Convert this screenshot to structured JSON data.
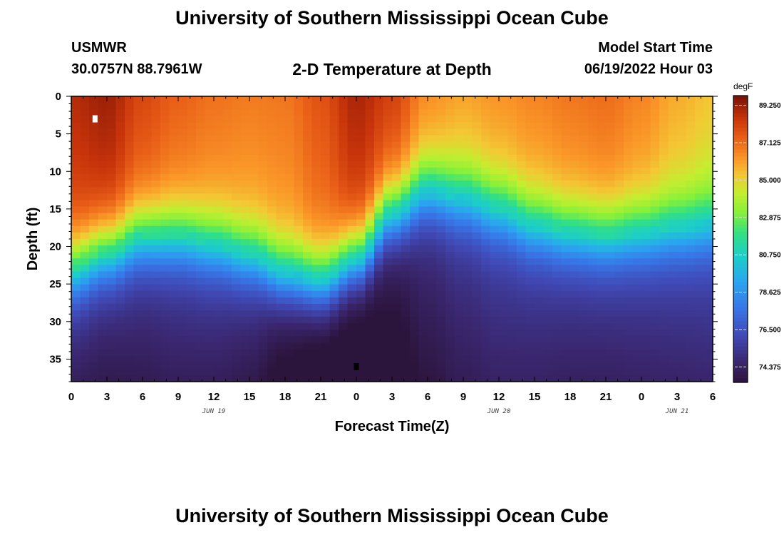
{
  "header": {
    "title": "University of Southern Mississippi Ocean Cube",
    "station": "USMWR",
    "coordinates": "30.0757N  88.7961W",
    "subtitle": "2-D Temperature at Depth",
    "model_start_label": "Model Start Time",
    "model_start_value": "06/19/2022 Hour 03"
  },
  "footer": {
    "title": "University of Southern Mississippi Ocean Cube"
  },
  "chart_data": {
    "type": "heatmap",
    "title": "2-D Temperature at Depth",
    "xlabel": "Forecast Time(Z)",
    "ylabel": "Depth (ft)",
    "x_range_hours": [
      0,
      54
    ],
    "y_range_ft": [
      0,
      38
    ],
    "x_tick_labels": [
      "0",
      "3",
      "6",
      "9",
      "12",
      "15",
      "18",
      "21",
      "0",
      "3",
      "6",
      "9",
      "12",
      "15",
      "18",
      "21",
      "0",
      "3",
      "6"
    ],
    "y_ticks": [
      0,
      5,
      10,
      15,
      20,
      25,
      30,
      35
    ],
    "date_labels": [
      {
        "text": "JUN 19",
        "hour": 12
      },
      {
        "text": "JUN 20",
        "hour": 36
      },
      {
        "text": "JUN 21",
        "hour": 51
      }
    ],
    "colorbar": {
      "unit": "degF",
      "min": 73.5,
      "max": 89.8,
      "labels": [
        "89.250",
        "87.125",
        "85.000",
        "82.875",
        "80.750",
        "78.625",
        "76.500",
        "74.375"
      ]
    },
    "markers": [
      {
        "kind": "max",
        "color": "#ffffff",
        "hour": 2,
        "depth_ft": 3
      },
      {
        "kind": "min",
        "color": "#000000",
        "hour": 24,
        "depth_ft": 36
      }
    ],
    "thermocline_depth_ft": [
      {
        "hour": 0,
        "depth": 22.5
      },
      {
        "hour": 3,
        "depth": 20.5
      },
      {
        "hour": 6,
        "depth": 18.5
      },
      {
        "hour": 9,
        "depth": 18.5
      },
      {
        "hour": 12,
        "depth": 19.5
      },
      {
        "hour": 15,
        "depth": 21.0
      },
      {
        "hour": 18,
        "depth": 23.5
      },
      {
        "hour": 21,
        "depth": 24.5
      },
      {
        "hour": 24,
        "depth": 21.5
      },
      {
        "hour": 27,
        "depth": 15.5
      },
      {
        "hour": 30,
        "depth": 12.5
      },
      {
        "hour": 33,
        "depth": 13.5
      },
      {
        "hour": 36,
        "depth": 15.0
      },
      {
        "hour": 39,
        "depth": 17.0
      },
      {
        "hour": 42,
        "depth": 18.0
      },
      {
        "hour": 45,
        "depth": 18.5
      },
      {
        "hour": 48,
        "depth": 18.0
      },
      {
        "hour": 51,
        "depth": 17.5
      },
      {
        "hour": 54,
        "depth": 17.0
      }
    ],
    "surface_temp_degF": [
      {
        "hour": 0,
        "temp": 88.8
      },
      {
        "hour": 3,
        "temp": 89.2
      },
      {
        "hour": 6,
        "temp": 88.0
      },
      {
        "hour": 9,
        "temp": 87.4
      },
      {
        "hour": 12,
        "temp": 87.0
      },
      {
        "hour": 15,
        "temp": 86.8
      },
      {
        "hour": 18,
        "temp": 86.9
      },
      {
        "hour": 21,
        "temp": 87.7
      },
      {
        "hour": 24,
        "temp": 89.0
      },
      {
        "hour": 27,
        "temp": 88.2
      },
      {
        "hour": 30,
        "temp": 86.5
      },
      {
        "hour": 33,
        "temp": 86.0
      },
      {
        "hour": 36,
        "temp": 86.3
      },
      {
        "hour": 39,
        "temp": 86.6
      },
      {
        "hour": 42,
        "temp": 86.9
      },
      {
        "hour": 45,
        "temp": 87.1
      },
      {
        "hour": 48,
        "temp": 86.6
      },
      {
        "hour": 51,
        "temp": 85.8
      },
      {
        "hour": 54,
        "temp": 85.3
      }
    ],
    "bottom_temp_degF": [
      {
        "hour": 0,
        "temp": 75.8
      },
      {
        "hour": 3,
        "temp": 75.5
      },
      {
        "hour": 6,
        "temp": 75.6
      },
      {
        "hour": 9,
        "temp": 75.8
      },
      {
        "hour": 12,
        "temp": 75.8
      },
      {
        "hour": 15,
        "temp": 75.5
      },
      {
        "hour": 18,
        "temp": 74.5
      },
      {
        "hour": 21,
        "temp": 74.0
      },
      {
        "hour": 24,
        "temp": 73.7
      },
      {
        "hour": 27,
        "temp": 74.3
      },
      {
        "hour": 30,
        "temp": 75.2
      },
      {
        "hour": 33,
        "temp": 75.7
      },
      {
        "hour": 36,
        "temp": 76.0
      },
      {
        "hour": 39,
        "temp": 76.0
      },
      {
        "hour": 42,
        "temp": 75.9
      },
      {
        "hour": 45,
        "temp": 75.9
      },
      {
        "hour": 48,
        "temp": 76.0
      },
      {
        "hour": 51,
        "temp": 76.1
      },
      {
        "hour": 54,
        "temp": 76.2
      }
    ]
  }
}
